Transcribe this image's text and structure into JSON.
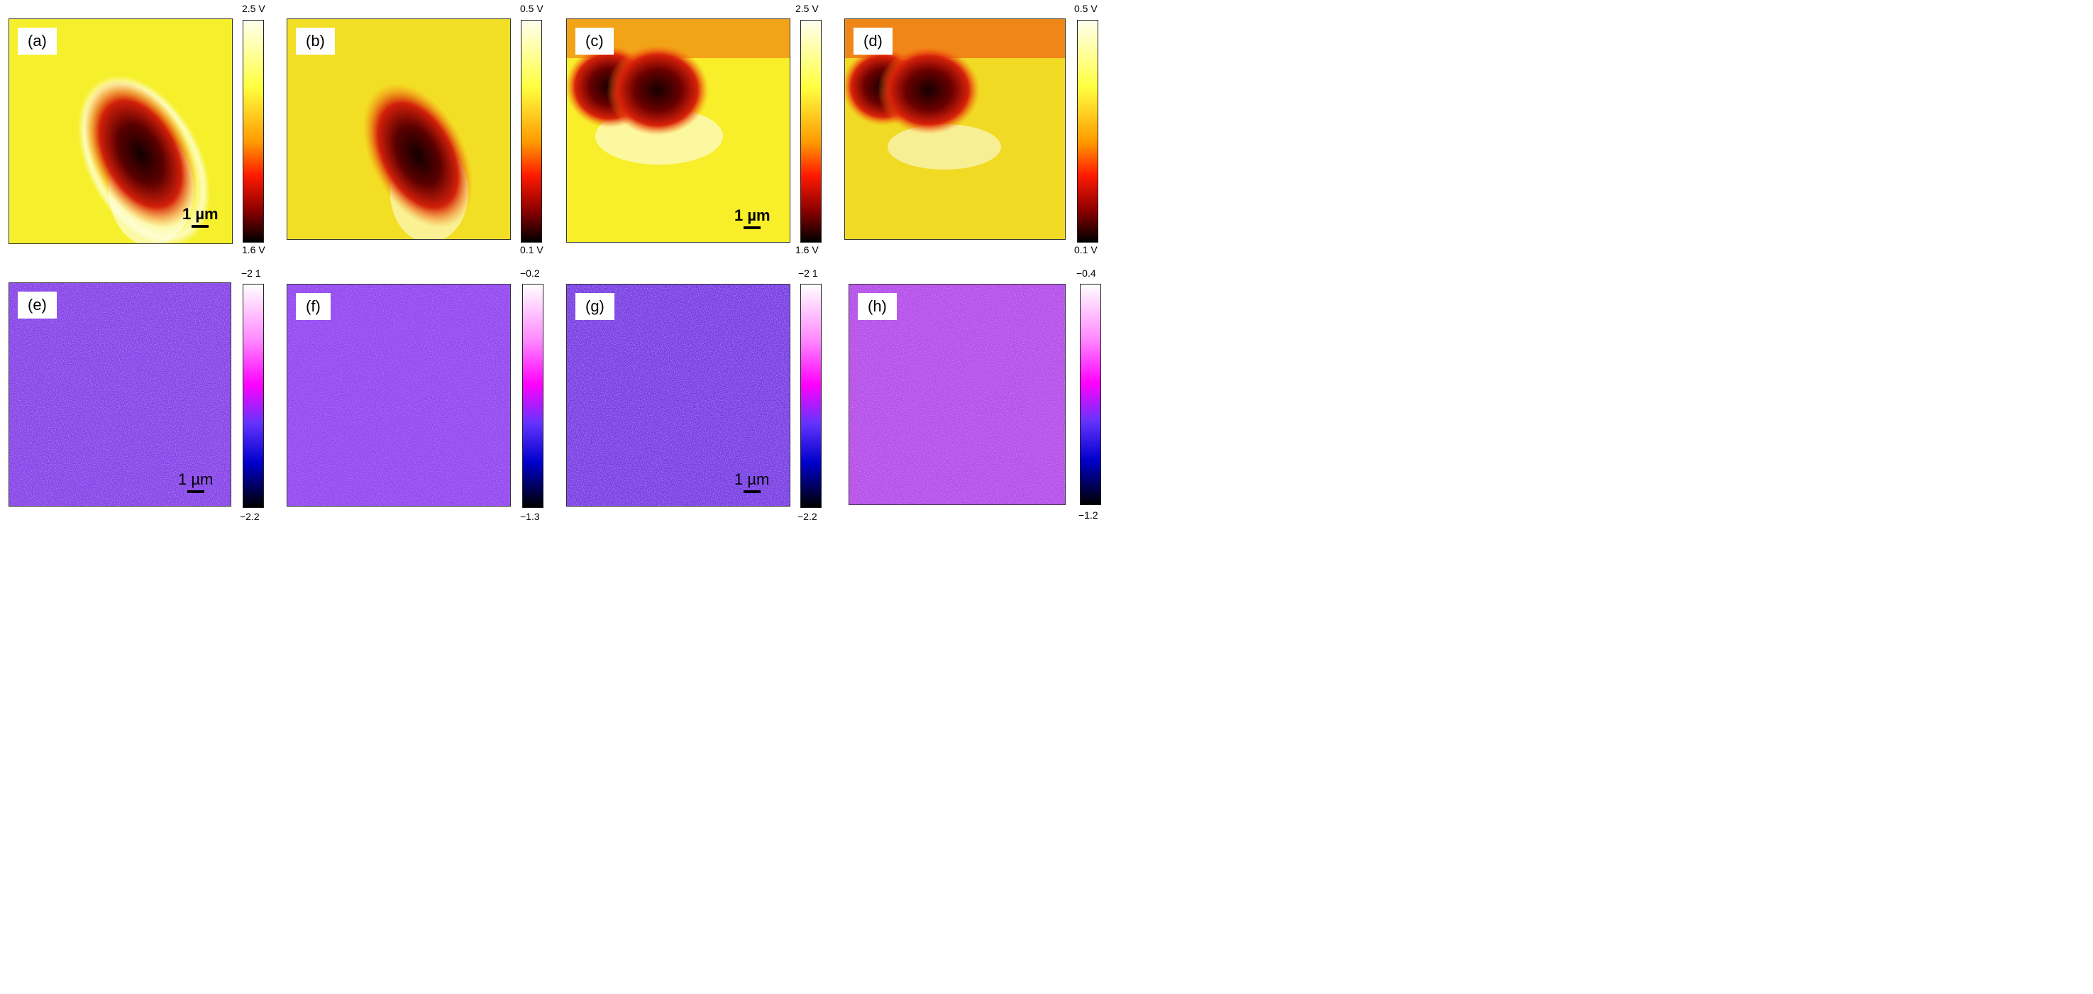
{
  "panels": [
    {
      "label": "(a)",
      "cb_top": "2.5 V",
      "cb_bottom": "1.6 V",
      "scale": "1 µm",
      "colormap": "heat"
    },
    {
      "label": "(b)",
      "cb_top": "0.5 V",
      "cb_bottom": "0.1 V",
      "scale": "",
      "colormap": "heat"
    },
    {
      "label": "(c)",
      "cb_top": "2.5 V",
      "cb_bottom": "1.6 V",
      "scale": "1 µm",
      "colormap": "heat"
    },
    {
      "label": "(d)",
      "cb_top": "0.5 V",
      "cb_bottom": "0.1 V",
      "scale": "",
      "colormap": "heat"
    },
    {
      "label": "(e)",
      "cb_top": "−2 1",
      "cb_bottom": "−2.2",
      "scale": "1 µm",
      "colormap": "purple"
    },
    {
      "label": "(f)",
      "cb_top": "−0.2",
      "cb_bottom": "−1.3",
      "scale": "",
      "colormap": "purple"
    },
    {
      "label": "(g)",
      "cb_top": "−2 1",
      "cb_bottom": "−2.2",
      "scale": "1 µm",
      "colormap": "purple"
    },
    {
      "label": "(h)",
      "cb_top": "−0.4",
      "cb_bottom": "−1.2",
      "scale": "",
      "colormap": "purple"
    }
  ],
  "colors": {
    "heat_bg": "#f5ee2a",
    "heat_dark": "#1a0000",
    "heat_mid": "#d6200a",
    "purple_bg": "#8a3ee8",
    "purple_light": "#ff77ff",
    "colorbar_heat": [
      "#fffff0",
      "#ffff40",
      "#ff9a00",
      "#ff1a00",
      "#8a0000",
      "#000000"
    ],
    "colorbar_purple": [
      "#ffffff",
      "#ff66ff",
      "#ff00ff",
      "#6633ff",
      "#0000cc",
      "#000000"
    ]
  }
}
